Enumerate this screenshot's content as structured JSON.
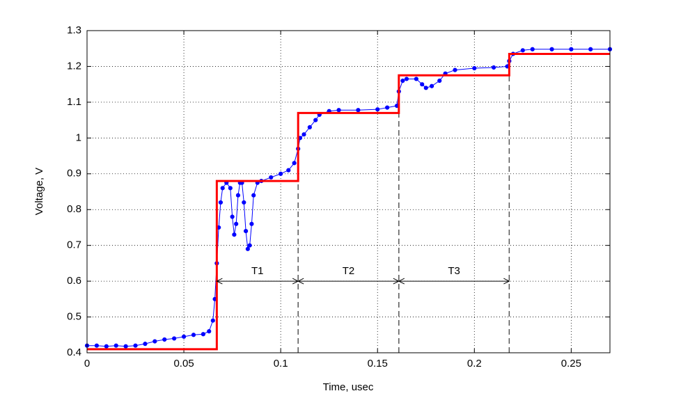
{
  "chart_data": {
    "type": "line",
    "xlabel": "Time, usec",
    "ylabel": "Voltage, V",
    "xlim": [
      0,
      0.27
    ],
    "ylim": [
      0.4,
      1.3
    ],
    "xticks": [
      0,
      0.05,
      0.1,
      0.15,
      0.2,
      0.25
    ],
    "yticks": [
      0.4,
      0.5,
      0.6,
      0.7,
      0.8,
      0.9,
      1,
      1.1,
      1.2,
      1.3
    ],
    "grid": true,
    "series": [
      {
        "color": "#0000ff",
        "marker": true,
        "x": [
          0,
          0.005,
          0.01,
          0.015,
          0.02,
          0.025,
          0.03,
          0.035,
          0.04,
          0.045,
          0.05,
          0.055,
          0.06,
          0.063,
          0.065,
          0.066,
          0.067,
          0.068,
          0.069,
          0.07,
          0.072,
          0.074,
          0.075,
          0.076,
          0.077,
          0.078,
          0.079,
          0.08,
          0.081,
          0.082,
          0.083,
          0.084,
          0.085,
          0.086,
          0.088,
          0.09,
          0.095,
          0.1,
          0.104,
          0.107,
          0.109,
          0.11,
          0.112,
          0.115,
          0.118,
          0.12,
          0.125,
          0.13,
          0.14,
          0.15,
          0.155,
          0.16,
          0.161,
          0.163,
          0.165,
          0.17,
          0.173,
          0.175,
          0.178,
          0.182,
          0.185,
          0.19,
          0.2,
          0.21,
          0.217,
          0.218,
          0.22,
          0.225,
          0.23,
          0.24,
          0.25,
          0.26,
          0.27
        ],
        "values": [
          0.42,
          0.42,
          0.418,
          0.42,
          0.418,
          0.42,
          0.425,
          0.432,
          0.437,
          0.44,
          0.445,
          0.45,
          0.452,
          0.46,
          0.49,
          0.55,
          0.65,
          0.75,
          0.82,
          0.86,
          0.875,
          0.86,
          0.78,
          0.73,
          0.76,
          0.84,
          0.875,
          0.875,
          0.82,
          0.74,
          0.69,
          0.7,
          0.76,
          0.84,
          0.875,
          0.88,
          0.89,
          0.9,
          0.91,
          0.93,
          0.97,
          1.0,
          1.01,
          1.03,
          1.05,
          1.065,
          1.075,
          1.078,
          1.078,
          1.08,
          1.085,
          1.09,
          1.13,
          1.16,
          1.165,
          1.165,
          1.15,
          1.14,
          1.145,
          1.16,
          1.18,
          1.19,
          1.195,
          1.197,
          1.2,
          1.215,
          1.235,
          1.245,
          1.248,
          1.248,
          1.248,
          1.248,
          1.248
        ]
      },
      {
        "color": "#ff0000",
        "marker": false,
        "x": [
          0,
          0.067,
          0.067,
          0.109,
          0.109,
          0.161,
          0.161,
          0.218,
          0.218,
          0.27
        ],
        "values": [
          0.41,
          0.41,
          0.88,
          0.88,
          1.07,
          1.07,
          1.175,
          1.175,
          1.235,
          1.235
        ]
      }
    ],
    "vlines": [
      {
        "x": 0.109,
        "y": [
          0.4,
          0.88
        ]
      },
      {
        "x": 0.161,
        "y": [
          0.4,
          1.07
        ]
      },
      {
        "x": 0.218,
        "y": [
          0.4,
          1.175
        ]
      }
    ],
    "annotations": [
      {
        "label": "T1",
        "x": [
          0.067,
          0.109
        ],
        "y": 0.6
      },
      {
        "label": "T2",
        "x": [
          0.109,
          0.161
        ],
        "y": 0.6
      },
      {
        "label": "T3",
        "x": [
          0.161,
          0.218
        ],
        "y": 0.6
      }
    ]
  }
}
